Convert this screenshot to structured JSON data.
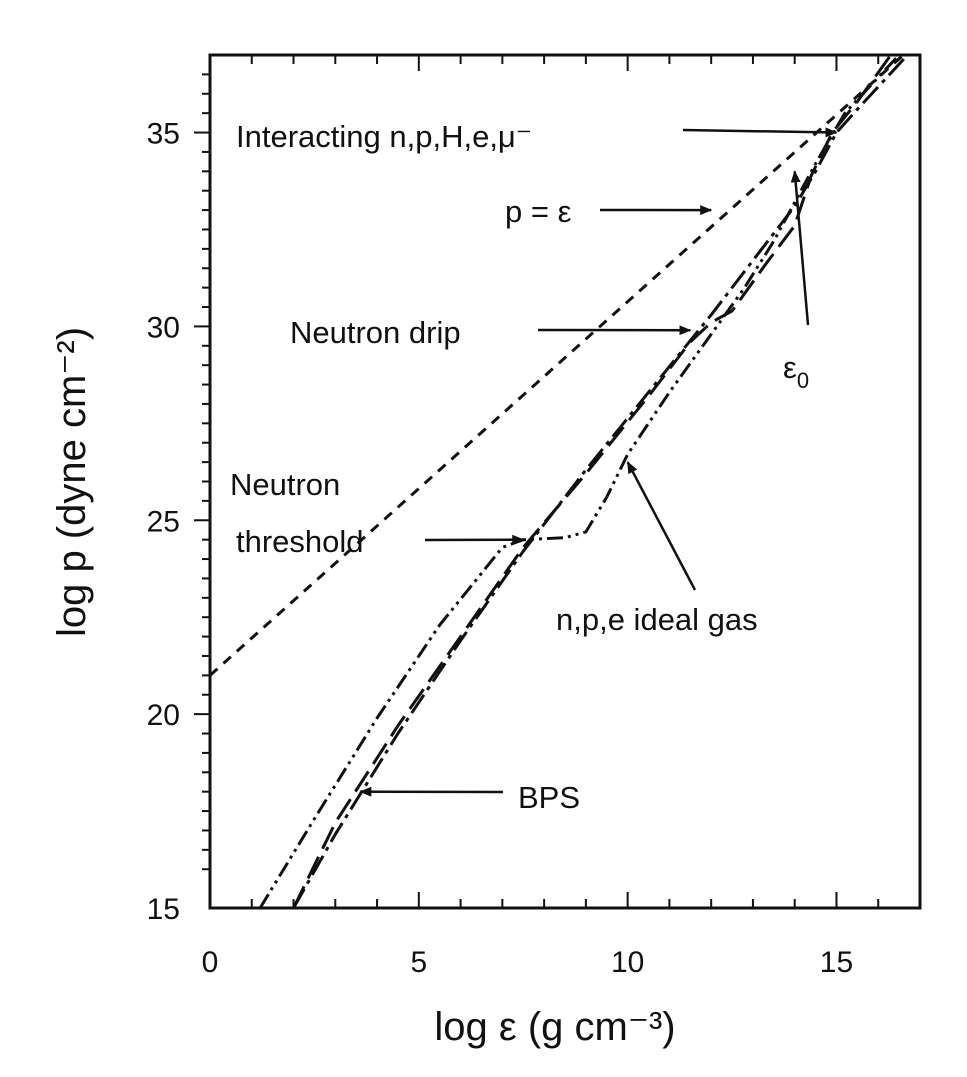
{
  "chart_data": {
    "type": "line",
    "xlabel": "log ε (g cm⁻³)",
    "ylabel": "log p (dyne cm⁻²)",
    "xlim": [
      0,
      17
    ],
    "ylim": [
      15,
      37
    ],
    "x_ticks": [
      "0",
      "5",
      "10",
      "15"
    ],
    "y_ticks": [
      "15",
      "20",
      "25",
      "30",
      "35"
    ],
    "grid": false,
    "legend": "none",
    "series": [
      {
        "style": "dashed",
        "x": [
          0,
          16.6
        ],
        "y": [
          21.0,
          37.0
        ]
      },
      {
        "style": "dash-dot-dot",
        "x": [
          1.2,
          2.5,
          4.0,
          5.5,
          7.0,
          7.5,
          8.5,
          9.0,
          9.5,
          10.0,
          11.0,
          12.0,
          12.8,
          13.5,
          14.0,
          14.5,
          15.2,
          16.5
        ],
        "y": [
          15.0,
          17.3,
          19.9,
          22.3,
          24.3,
          24.5,
          24.55,
          24.7,
          25.6,
          26.7,
          28.3,
          29.8,
          31.0,
          32.2,
          33.2,
          34.2,
          35.5,
          37.0
        ]
      },
      {
        "style": "long-dash",
        "x": [
          2.0,
          3.0,
          4.5,
          6.0,
          7.5,
          9.0,
          10.5,
          11.5,
          12.0,
          12.5,
          13.3,
          14.0,
          14.4,
          14.9,
          15.5,
          16.3
        ],
        "y": [
          15.0,
          17.2,
          19.7,
          22.0,
          24.3,
          26.2,
          28.2,
          29.6,
          30.1,
          30.4,
          31.6,
          32.6,
          33.9,
          35.0,
          35.8,
          37.0
        ]
      },
      {
        "style": "dash-dot",
        "x": [
          2.0,
          3.0,
          4.5,
          6.0,
          7.5,
          9.0,
          10.5,
          12.0,
          13.0,
          14.0,
          14.5,
          15.0,
          15.5,
          16.7
        ],
        "y": [
          15.0,
          16.9,
          19.5,
          21.9,
          24.2,
          26.3,
          28.3,
          30.3,
          31.7,
          33.1,
          34.0,
          35.0,
          35.6,
          37.0
        ]
      }
    ],
    "annotations": [
      {
        "text": "Interacting n,p,H,e,μ⁻",
        "arrow_to": [
          15.0,
          35.0
        ]
      },
      {
        "text": "p = ε",
        "arrow_to": [
          12.0,
          33.0
        ]
      },
      {
        "text": "Neutron drip",
        "arrow_to": [
          11.5,
          29.9
        ]
      },
      {
        "text": "ε0",
        "arrow_to": [
          14.0,
          34.0
        ]
      },
      {
        "text": "Neutron threshold",
        "arrow_to": [
          7.5,
          24.5
        ]
      },
      {
        "text": "n,p,e ideal gas",
        "arrow_to": [
          10.0,
          26.5
        ]
      },
      {
        "text": "BPS",
        "arrow_to": [
          3.6,
          18.0
        ]
      }
    ]
  }
}
